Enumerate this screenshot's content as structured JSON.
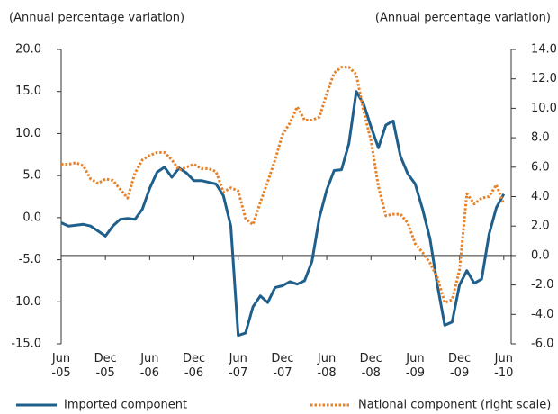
{
  "chart_data": {
    "type": "line",
    "ylabel": "(Annual percentage variation)",
    "y2label": "(Annual percentage variation)",
    "categories": [
      "Jun\n-05",
      null,
      null,
      null,
      null,
      null,
      "Dec\n-05",
      null,
      null,
      null,
      null,
      null,
      "Jun\n-06",
      null,
      null,
      null,
      null,
      null,
      "Dec\n-06",
      null,
      null,
      null,
      null,
      null,
      "Jun\n-07",
      null,
      null,
      null,
      null,
      null,
      "Dec\n-07",
      null,
      null,
      null,
      null,
      null,
      "Jun\n-08",
      null,
      null,
      null,
      null,
      null,
      "Dec\n-08",
      null,
      null,
      null,
      null,
      null,
      "Jun\n-09",
      null,
      null,
      null,
      null,
      null,
      "Dec\n-09",
      null,
      null,
      null,
      null,
      null,
      "Jun\n-10"
    ],
    "series": [
      {
        "name": "Imported component",
        "color": "#1f5f8b",
        "style": "solid",
        "values": [
          -0.6,
          -1.0,
          -0.9,
          -0.8,
          -1.0,
          -1.6,
          -2.2,
          -1.0,
          -0.2,
          -0.1,
          -0.2,
          1.0,
          3.5,
          5.4,
          6.0,
          4.8,
          5.9,
          5.3,
          4.4,
          4.4,
          4.2,
          4.0,
          2.6,
          -1.0,
          -14.0,
          -13.7,
          -10.6,
          -9.3,
          -10.1,
          -8.3,
          -8.1,
          -7.6,
          -7.9,
          -7.5,
          -5.2,
          0.0,
          3.3,
          5.6,
          5.7,
          8.8,
          15.0,
          13.5,
          10.8,
          8.3,
          11.0,
          11.5,
          7.3,
          5.2,
          4.0,
          1.0,
          -2.5,
          -8.0,
          -12.8,
          -12.4,
          -8.0,
          -6.3,
          -7.8,
          -7.3,
          -2.0,
          1.2,
          2.8
        ]
      },
      {
        "name": "National component (right scale)",
        "color": "#e6822b",
        "style": "dotted",
        "axis": "y2",
        "values": [
          6.2,
          6.2,
          6.3,
          6.1,
          5.2,
          4.9,
          5.2,
          5.1,
          4.5,
          3.9,
          5.6,
          6.5,
          6.8,
          7.0,
          7.0,
          6.5,
          5.8,
          6.0,
          6.2,
          5.9,
          5.9,
          5.7,
          4.3,
          4.6,
          4.4,
          2.5,
          2.1,
          3.6,
          5.0,
          6.5,
          8.2,
          9.0,
          10.1,
          9.2,
          9.2,
          9.4,
          11.0,
          12.4,
          12.8,
          12.8,
          12.3,
          9.8,
          7.8,
          4.7,
          2.7,
          2.8,
          2.8,
          2.2,
          0.8,
          0.2,
          -0.5,
          -1.5,
          -3.2,
          -3.0,
          -1.0,
          4.2,
          3.5,
          3.9,
          4.0,
          4.8,
          3.5
        ]
      }
    ],
    "ylim": [
      -15,
      20
    ],
    "yticks": [
      {
        "value": -15,
        "label": "-15.0"
      },
      {
        "value": -10,
        "label": "-10.0"
      },
      {
        "value": -5,
        "label": "-5.0"
      },
      {
        "value": 0,
        "label": "0.0"
      },
      {
        "value": 5,
        "label": "5.0"
      },
      {
        "value": 10,
        "label": "10.0"
      },
      {
        "value": 15,
        "label": "15.0"
      },
      {
        "value": 20,
        "label": "20.0"
      }
    ],
    "y2lim": [
      -6,
      14
    ],
    "y2ticks": [
      {
        "value": -6,
        "label": "-6.0"
      },
      {
        "value": -4,
        "label": "-4.0"
      },
      {
        "value": -2,
        "label": "-2.0"
      },
      {
        "value": 0,
        "label": "0.0"
      },
      {
        "value": 2,
        "label": "2.0"
      },
      {
        "value": 4,
        "label": "4.0"
      },
      {
        "value": 6,
        "label": "6.0"
      },
      {
        "value": 8,
        "label": "8.0"
      },
      {
        "value": 10,
        "label": "10.0"
      },
      {
        "value": 12,
        "label": "12.0"
      },
      {
        "value": 14,
        "label": "14.0"
      }
    ],
    "grid": false,
    "legend": "bottom"
  }
}
